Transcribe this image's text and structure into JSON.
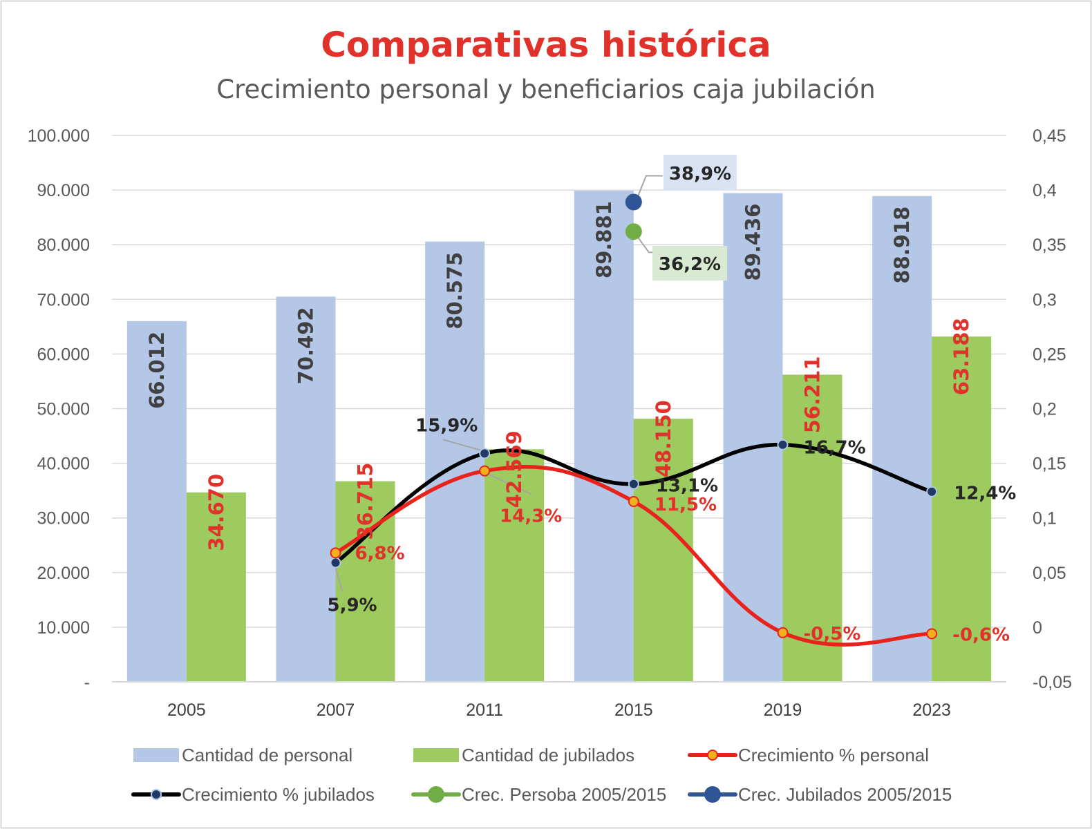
{
  "chart_data": {
    "type": "bar",
    "title": "Comparativas histórica",
    "subtitle": "Crecimiento personal y beneficiarios caja jubilación",
    "categories": [
      "2005",
      "2007",
      "2011",
      "2015",
      "2019",
      "2023"
    ],
    "y_left": {
      "min": 0,
      "max": 100000,
      "ticks": [
        "-",
        "10.000",
        "20.000",
        "30.000",
        "40.000",
        "50.000",
        "60.000",
        "70.000",
        "80.000",
        "90.000",
        "100.000"
      ]
    },
    "y_right": {
      "min": -0.05,
      "max": 0.45,
      "ticks": [
        "-0,05",
        "0",
        "0,05",
        "0,1",
        "0,15",
        "0,2",
        "0,25",
        "0,3",
        "0,35",
        "0,4",
        "0,45"
      ]
    },
    "grid": true,
    "legend_position": "bottom",
    "series": [
      {
        "name": "Cantidad de personal",
        "kind": "bar",
        "axis": "left",
        "color": "#b4c7e7",
        "label_color": "#404040",
        "values": [
          66012,
          70492,
          80575,
          89881,
          89436,
          88918
        ],
        "labels": [
          "66.012",
          "70.492",
          "80.575",
          "89.881",
          "89.436",
          "88.918"
        ]
      },
      {
        "name": "Cantidad de jubilados",
        "kind": "bar",
        "axis": "left",
        "color": "#9dcb5f",
        "label_color": "#e0322a",
        "values": [
          34670,
          36715,
          42569,
          48150,
          56211,
          63188
        ],
        "labels": [
          "34.670",
          "36.715",
          "42.569",
          "48.150",
          "56.211",
          "63.188"
        ]
      },
      {
        "name": "Crecimiento % personal",
        "kind": "line",
        "axis": "right",
        "color": "#e8231b",
        "marker_fill": "#f2b01e",
        "label_color": "#e0322a",
        "values": [
          null,
          0.068,
          0.143,
          0.115,
          -0.005,
          -0.006
        ],
        "labels": [
          "",
          "6,8%",
          "14,3%",
          "11,5%",
          "-0,5%",
          "-0,6%"
        ]
      },
      {
        "name": "Crecimiento % jubilados",
        "kind": "line",
        "axis": "right",
        "color": "#000000",
        "marker_fill": "#1f3864",
        "label_color": "#262626",
        "values": [
          null,
          0.059,
          0.159,
          0.131,
          0.167,
          0.124
        ],
        "labels": [
          "",
          "5,9%",
          "15,9%",
          "13,1%",
          "16,7%",
          "12,4%"
        ]
      },
      {
        "name": "Crec. Persoba 2005/2015",
        "kind": "point",
        "axis": "right",
        "color": "#70ad47",
        "category": "2015",
        "value": 0.362,
        "label": "36,2%",
        "label_bg": "#d9ead3"
      },
      {
        "name": "Crec. Jubilados 2005/2015",
        "kind": "point",
        "axis": "right",
        "color": "#2f5597",
        "category": "2015",
        "value": 0.389,
        "label": "38,9%",
        "label_bg": "#dae3f3"
      }
    ]
  }
}
